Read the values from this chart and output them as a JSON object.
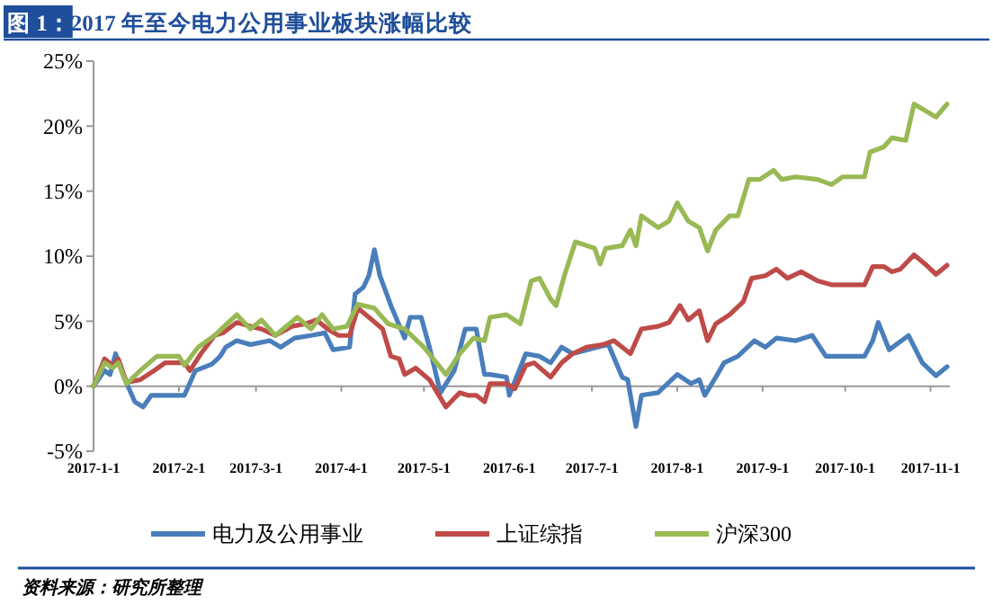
{
  "chart_data": {
    "type": "line",
    "title": "图 1：2017 年至今电力公用事业板块涨幅比较",
    "xlim": [
      "2017-01-01",
      "2017-11-08"
    ],
    "xticks": [
      {
        "value": "2017-01-01",
        "label": "2017-1-1"
      },
      {
        "value": "2017-02-01",
        "label": "2017-2-1"
      },
      {
        "value": "2017-03-01",
        "label": "2017-3-1"
      },
      {
        "value": "2017-04-01",
        "label": "2017-4-1"
      },
      {
        "value": "2017-05-01",
        "label": "2017-5-1"
      },
      {
        "value": "2017-06-01",
        "label": "2017-6-1"
      },
      {
        "value": "2017-07-01",
        "label": "2017-7-1"
      },
      {
        "value": "2017-08-01",
        "label": "2017-8-1"
      },
      {
        "value": "2017-09-01",
        "label": "2017-9-1"
      },
      {
        "value": "2017-10-01",
        "label": "2017-10-1"
      },
      {
        "value": "2017-11-01",
        "label": "2017-11-1"
      }
    ],
    "ylim": [
      -5,
      25
    ],
    "yticks": [
      {
        "value": -5,
        "label": "-5%"
      },
      {
        "value": 0,
        "label": "0%"
      },
      {
        "value": 5,
        "label": "5%"
      },
      {
        "value": 10,
        "label": "10%"
      },
      {
        "value": 15,
        "label": "15%"
      },
      {
        "value": 20,
        "label": "20%"
      },
      {
        "value": 25,
        "label": "25%"
      }
    ],
    "legend": "bottom",
    "marker": "none",
    "line_style": "solid",
    "annotations": [
      "资料来源：研究所整理"
    ],
    "series": [
      {
        "name": "电力及公用事业",
        "color": "#4a7ebb",
        "x": [
          "2017-01-01",
          "2017-01-05",
          "2017-01-07",
          "2017-01-09",
          "2017-01-12",
          "2017-01-16",
          "2017-01-19",
          "2017-01-22",
          "2017-01-27",
          "2017-02-03",
          "2017-02-07",
          "2017-02-13",
          "2017-02-16",
          "2017-02-18",
          "2017-02-22",
          "2017-02-27",
          "2017-03-06",
          "2017-03-10",
          "2017-03-15",
          "2017-03-21",
          "2017-03-26",
          "2017-03-29",
          "2017-04-04",
          "2017-04-06",
          "2017-04-09",
          "2017-04-11",
          "2017-04-13",
          "2017-04-15",
          "2017-04-19",
          "2017-04-24",
          "2017-04-26",
          "2017-04-30",
          "2017-05-03",
          "2017-05-07",
          "2017-05-12",
          "2017-05-16",
          "2017-05-20",
          "2017-05-23",
          "2017-05-25",
          "2017-05-31",
          "2017-06-01",
          "2017-06-07",
          "2017-06-12",
          "2017-06-16",
          "2017-06-20",
          "2017-06-24",
          "2017-07-03",
          "2017-07-07",
          "2017-07-12",
          "2017-07-14",
          "2017-07-17",
          "2017-07-19",
          "2017-07-25",
          "2017-08-01",
          "2017-08-06",
          "2017-08-09",
          "2017-08-11",
          "2017-08-15",
          "2017-08-18",
          "2017-08-23",
          "2017-08-29",
          "2017-09-02",
          "2017-09-06",
          "2017-09-13",
          "2017-09-19",
          "2017-09-24",
          "2017-10-08",
          "2017-10-11",
          "2017-10-13",
          "2017-10-17",
          "2017-10-24",
          "2017-10-29",
          "2017-11-03",
          "2017-11-07"
        ],
        "values": [
          0,
          1.2,
          0.9,
          2.5,
          0.7,
          -1.2,
          -1.6,
          -0.7,
          -0.7,
          -0.7,
          1.2,
          1.7,
          2.3,
          3.0,
          3.5,
          3.2,
          3.5,
          3.0,
          3.7,
          3.9,
          4.1,
          2.8,
          3.0,
          7.1,
          7.6,
          8.5,
          10.5,
          8.5,
          6.2,
          3.7,
          5.3,
          5.3,
          3.0,
          -0.5,
          1.2,
          4.4,
          4.4,
          0.9,
          0.9,
          0.7,
          -0.7,
          2.5,
          2.3,
          1.8,
          3.0,
          2.5,
          3.0,
          3.2,
          0.7,
          0.5,
          -3.1,
          -0.7,
          -0.5,
          0.9,
          0.2,
          0.5,
          -0.7,
          0.7,
          1.8,
          2.3,
          3.5,
          3.0,
          3.7,
          3.5,
          3.9,
          2.3,
          2.3,
          3.5,
          4.9,
          2.8,
          3.9,
          1.8,
          0.8,
          1.5
        ]
      },
      {
        "name": "上证综指",
        "color": "#be4b48",
        "x": [
          "2017-01-01",
          "2017-01-05",
          "2017-01-08",
          "2017-01-10",
          "2017-01-13",
          "2017-01-18",
          "2017-01-23",
          "2017-01-27",
          "2017-02-03",
          "2017-02-05",
          "2017-02-09",
          "2017-02-14",
          "2017-02-17",
          "2017-02-22",
          "2017-02-27",
          "2017-03-03",
          "2017-03-08",
          "2017-03-14",
          "2017-03-19",
          "2017-03-23",
          "2017-03-27",
          "2017-03-31",
          "2017-04-04",
          "2017-04-07",
          "2017-04-11",
          "2017-04-16",
          "2017-04-19",
          "2017-04-22",
          "2017-04-24",
          "2017-04-28",
          "2017-05-03",
          "2017-05-09",
          "2017-05-14",
          "2017-05-17",
          "2017-05-20",
          "2017-05-23",
          "2017-05-25",
          "2017-05-31",
          "2017-06-03",
          "2017-06-07",
          "2017-06-10",
          "2017-06-16",
          "2017-06-20",
          "2017-06-24",
          "2017-06-29",
          "2017-07-05",
          "2017-07-09",
          "2017-07-15",
          "2017-07-19",
          "2017-07-25",
          "2017-07-29",
          "2017-08-02",
          "2017-08-05",
          "2017-08-09",
          "2017-08-12",
          "2017-08-15",
          "2017-08-20",
          "2017-08-25",
          "2017-08-28",
          "2017-09-02",
          "2017-09-06",
          "2017-09-10",
          "2017-09-15",
          "2017-09-21",
          "2017-09-26",
          "2017-10-08",
          "2017-10-11",
          "2017-10-15",
          "2017-10-18",
          "2017-10-21",
          "2017-10-26",
          "2017-10-30",
          "2017-11-03",
          "2017-11-07"
        ],
        "values": [
          0,
          2.1,
          1.6,
          2.1,
          0.3,
          0.5,
          1.2,
          1.8,
          1.8,
          1.2,
          2.5,
          3.9,
          4.1,
          4.9,
          4.6,
          4.4,
          3.9,
          4.6,
          4.8,
          5.1,
          4.4,
          3.9,
          3.9,
          6.0,
          5.3,
          4.4,
          2.3,
          2.1,
          0.9,
          1.4,
          0.5,
          -1.6,
          -0.5,
          -0.7,
          -0.7,
          -1.2,
          0.2,
          0.2,
          -0.2,
          1.6,
          1.8,
          0.7,
          1.8,
          2.5,
          3.0,
          3.2,
          3.5,
          2.5,
          4.4,
          4.6,
          4.9,
          6.2,
          5.1,
          5.8,
          3.5,
          4.8,
          5.5,
          6.5,
          8.3,
          8.5,
          9.0,
          8.3,
          8.8,
          8.1,
          7.8,
          7.8,
          9.2,
          9.2,
          8.8,
          9.0,
          10.1,
          9.4,
          8.6,
          9.3
        ]
      },
      {
        "name": "沪深300",
        "color": "#98b954",
        "x": [
          "2017-01-01",
          "2017-01-05",
          "2017-01-08",
          "2017-01-10",
          "2017-01-13",
          "2017-01-19",
          "2017-01-24",
          "2017-02-01",
          "2017-02-03",
          "2017-02-08",
          "2017-02-14",
          "2017-02-22",
          "2017-02-27",
          "2017-03-03",
          "2017-03-08",
          "2017-03-16",
          "2017-03-21",
          "2017-03-25",
          "2017-03-29",
          "2017-04-03",
          "2017-04-07",
          "2017-04-13",
          "2017-04-18",
          "2017-04-24",
          "2017-05-01",
          "2017-05-09",
          "2017-05-14",
          "2017-05-19",
          "2017-05-23",
          "2017-05-25",
          "2017-05-31",
          "2017-06-05",
          "2017-06-09",
          "2017-06-12",
          "2017-06-16",
          "2017-06-18",
          "2017-06-21",
          "2017-06-25",
          "2017-07-02",
          "2017-07-04",
          "2017-07-06",
          "2017-07-12",
          "2017-07-15",
          "2017-07-17",
          "2017-07-19",
          "2017-07-25",
          "2017-07-29",
          "2017-08-01",
          "2017-08-05",
          "2017-08-09",
          "2017-08-12",
          "2017-08-15",
          "2017-08-20",
          "2017-08-23",
          "2017-08-27",
          "2017-08-31",
          "2017-09-05",
          "2017-09-08",
          "2017-09-13",
          "2017-09-21",
          "2017-09-26",
          "2017-09-30",
          "2017-10-08",
          "2017-10-10",
          "2017-10-15",
          "2017-10-18",
          "2017-10-23",
          "2017-10-26",
          "2017-10-30",
          "2017-11-03",
          "2017-11-07"
        ],
        "values": [
          0,
          1.8,
          1.4,
          1.8,
          0.2,
          1.4,
          2.3,
          2.3,
          1.6,
          3.0,
          3.9,
          5.5,
          4.4,
          5.1,
          3.9,
          5.3,
          4.4,
          5.5,
          4.4,
          4.6,
          6.3,
          6.0,
          4.8,
          4.4,
          3.0,
          0.9,
          2.5,
          3.7,
          3.5,
          5.3,
          5.5,
          4.8,
          8.1,
          8.3,
          6.7,
          6.2,
          8.5,
          11.1,
          10.6,
          9.4,
          10.6,
          10.8,
          12.0,
          10.8,
          13.1,
          12.2,
          12.7,
          14.1,
          12.7,
          12.2,
          10.4,
          12.0,
          13.1,
          13.1,
          15.9,
          15.9,
          16.6,
          15.9,
          16.1,
          15.9,
          15.5,
          16.1,
          16.1,
          18.0,
          18.4,
          19.1,
          18.9,
          21.7,
          21.2,
          20.7,
          21.7
        ]
      }
    ]
  }
}
